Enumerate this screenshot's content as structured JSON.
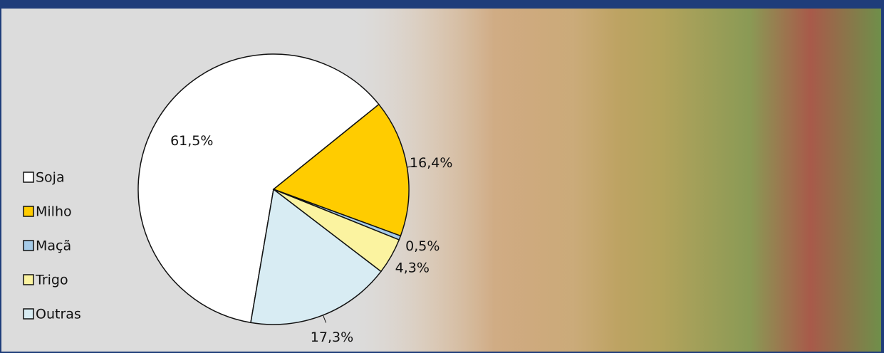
{
  "chart_data": {
    "type": "pie",
    "categories": [
      "Soja",
      "Milho",
      "Maçã",
      "Trigo",
      "Outras"
    ],
    "values": [
      61.5,
      16.4,
      0.5,
      4.3,
      17.3
    ],
    "value_labels": [
      "61,5%",
      "16,4%",
      "0,5%",
      "4,3%",
      "17,3%"
    ],
    "colors": [
      "#ffffff",
      "#ffcc00",
      "#a6cbe8",
      "#fbf3a0",
      "#d8ecf3"
    ],
    "legend": "left"
  }
}
